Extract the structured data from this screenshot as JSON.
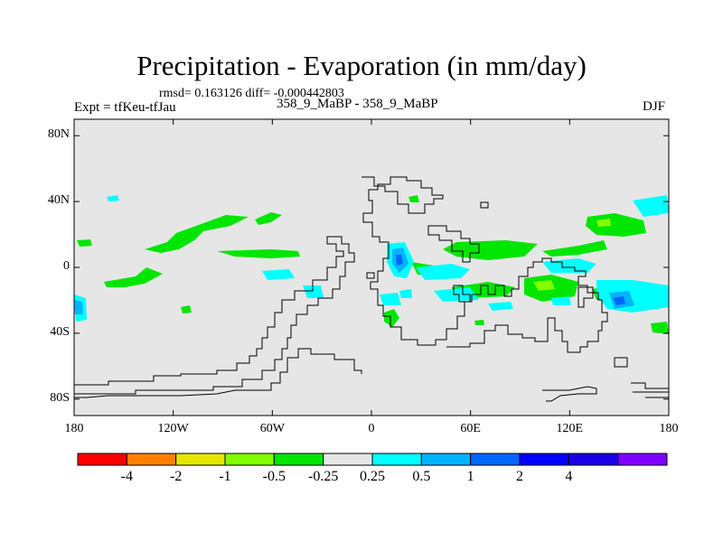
{
  "title": "Precipitation - Evaporation (in mm/day)",
  "stats": "rmsd= 0.163126 diff= -0.000442803",
  "experiment": "Expt = tfKeu-tfJau",
  "comparison": "358_9_MaBP - 358_9_MaBP",
  "season": "DJF",
  "map": {
    "projection": "cylindrical-equidistant",
    "lon_range": [
      -180,
      180
    ],
    "lat_range": [
      -90,
      90
    ],
    "background_color": "#e6e6e6",
    "coastline_color": "#000000",
    "lat_ticks": [
      {
        "value": 80,
        "label": "80N"
      },
      {
        "value": 40,
        "label": "40N"
      },
      {
        "value": 0,
        "label": "0"
      },
      {
        "value": -40,
        "label": "40S"
      },
      {
        "value": -80,
        "label": "80S"
      }
    ],
    "lon_ticks": [
      {
        "value": -180,
        "label": "180"
      },
      {
        "value": -120,
        "label": "120W"
      },
      {
        "value": -60,
        "label": "60W"
      },
      {
        "value": 0,
        "label": "0"
      },
      {
        "value": 60,
        "label": "60E"
      },
      {
        "value": 120,
        "label": "120E"
      },
      {
        "value": 180,
        "label": "180"
      }
    ]
  },
  "colorbar": {
    "colors": [
      "#ff0000",
      "#ff8000",
      "#e6e600",
      "#80ff00",
      "#00e600",
      "#e6e6e6",
      "#00ffff",
      "#00b3ff",
      "#0066ff",
      "#0000ff",
      "#1a00e6",
      "#8000ff"
    ],
    "labels": [
      "-4",
      "-2",
      "-1",
      "-0.5",
      "-0.25",
      "0.25",
      "0.5",
      "1",
      "2",
      "4"
    ]
  }
}
